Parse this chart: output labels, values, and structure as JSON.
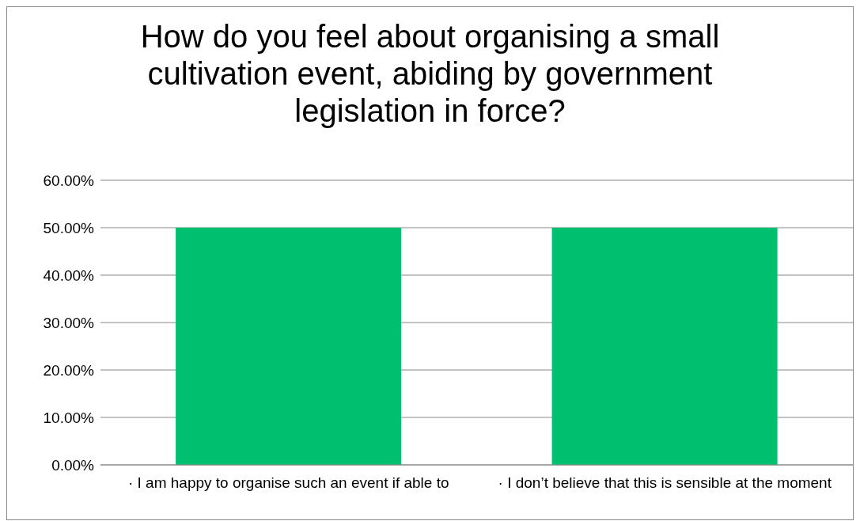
{
  "chart_data": {
    "type": "bar",
    "title": "How do you feel about organising a small cultivation event, abiding by government legislation in force?",
    "categories": [
      "·      I am happy to organise such an event if able to",
      "·      I don’t believe that this is sensible at the moment"
    ],
    "values": [
      50,
      50
    ],
    "color": "#00bf6f",
    "ylim": [
      0,
      60
    ],
    "yticks": [
      {
        "value": 0,
        "label": "0.00%"
      },
      {
        "value": 10,
        "label": "10.00%"
      },
      {
        "value": 20,
        "label": "20.00%"
      },
      {
        "value": 30,
        "label": "30.00%"
      },
      {
        "value": 40,
        "label": "40.00%"
      },
      {
        "value": 50,
        "label": "50.00%"
      },
      {
        "value": 60,
        "label": "60.00%"
      }
    ],
    "grid": "y"
  }
}
